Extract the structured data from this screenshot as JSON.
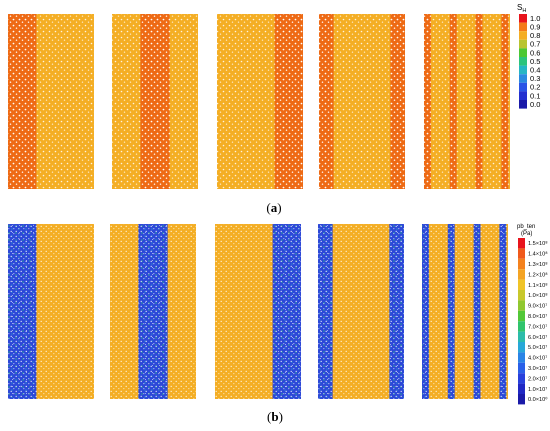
{
  "panel_a": {
    "label_open": "(",
    "label_letter": "a",
    "label_close": ")",
    "legend": {
      "title_main": "S",
      "title_sub": "H",
      "ticks": [
        "1.0",
        "0.9",
        "0.8",
        "0.7",
        "0.6",
        "0.5",
        "0.4",
        "0.3",
        "0.2",
        "0.1",
        "0.0"
      ],
      "colors": [
        "#e8141c",
        "#f47a1a",
        "#f4ae24",
        "#b8c430",
        "#4cc834",
        "#2cc47c",
        "#26b6c4",
        "#2a8ae0",
        "#2a54e6",
        "#2430d0",
        "#1a1aa8"
      ]
    },
    "specimens": [
      {
        "name": "left-band",
        "bands": [
          [
            0.0,
            0.33
          ]
        ]
      },
      {
        "name": "center-band",
        "bands": [
          [
            0.33,
            0.67
          ]
        ]
      },
      {
        "name": "right-band",
        "bands": [
          [
            0.67,
            1.0
          ]
        ]
      },
      {
        "name": "two-bands",
        "bands": [
          [
            0.0,
            0.17
          ],
          [
            0.83,
            1.0
          ]
        ]
      },
      {
        "name": "four-bands",
        "bands": [
          [
            0.0,
            0.08
          ],
          [
            0.3,
            0.38
          ],
          [
            0.6,
            0.68
          ],
          [
            0.9,
            0.98
          ]
        ]
      }
    ],
    "matrix_color": "#f4ae24",
    "band_color": "#ee6a14"
  },
  "panel_b": {
    "label_open": "(",
    "label_letter": "b",
    "label_close": ")",
    "legend": {
      "title": "pb_ten",
      "unit": "(Pa)",
      "ticks": [
        "1.5×10⁸",
        "1.4×10⁸",
        "1.3×10⁸",
        "1.2×10⁸",
        "1.1×10⁸",
        "1.0×10⁸",
        "9.0×10⁷",
        "8.0×10⁷",
        "7.0×10⁷",
        "6.0×10⁷",
        "5.0×10⁷",
        "4.0×10⁷",
        "3.0×10⁷",
        "2.0×10⁷",
        "1.0×10⁷",
        "0.0×10⁰"
      ],
      "colors": [
        "#e8141c",
        "#f05a1c",
        "#f4821e",
        "#f4a424",
        "#f0c428",
        "#c8c82c",
        "#90c830",
        "#52c838",
        "#30c46c",
        "#2cbcaa",
        "#28a8d8",
        "#2a84e6",
        "#2a60e8",
        "#2840dc",
        "#2028c4",
        "#1a1aa8"
      ]
    },
    "specimens": [
      {
        "name": "left-band",
        "bands": [
          [
            0.0,
            0.33
          ]
        ]
      },
      {
        "name": "center-band",
        "bands": [
          [
            0.33,
            0.67
          ]
        ]
      },
      {
        "name": "right-band",
        "bands": [
          [
            0.67,
            1.0
          ]
        ]
      },
      {
        "name": "two-bands",
        "bands": [
          [
            0.0,
            0.17
          ],
          [
            0.83,
            1.0
          ]
        ]
      },
      {
        "name": "four-bands",
        "bands": [
          [
            0.0,
            0.08
          ],
          [
            0.3,
            0.38
          ],
          [
            0.6,
            0.68
          ],
          [
            0.9,
            0.98
          ]
        ]
      }
    ],
    "matrix_color": "#f4ae24",
    "band_color": "#2c48d8"
  }
}
